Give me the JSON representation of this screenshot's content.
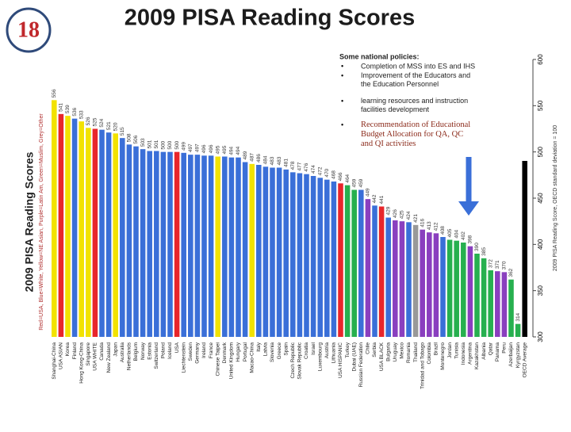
{
  "slide": {
    "number": "18",
    "title": "2009 PISA Reading Scores"
  },
  "chart_data": {
    "type": "bar",
    "y_label": "2009 PISA Reading Scores",
    "color_key": "Red=USA, Blue=White, Yellow=NE Asian, Purple=Latin Am, Green=Muslim, Grey=Other",
    "y2_label": "2009 PISA Reading Score, OECD standard deviation = 100",
    "annotation": {
      "heading": "Some national policies:",
      "bullets": [
        "Completion of MSS into ES and IHS",
        "Improvement of the Educators and the Education Personnel",
        "learning resources and instruction facilities development",
        "Recommendation of Educational Budget Allocation for QA, QC and QI activities"
      ]
    },
    "categories": [
      "Shanghai-China",
      "USA ASIAN",
      "Korea",
      "Finland",
      "Hong Kong-China",
      "Singapore",
      "USA WHITE",
      "Canada",
      "New Zealand",
      "Japan",
      "Australia",
      "Netherlands",
      "Belgium",
      "Norway",
      "Estonia",
      "Switzerland",
      "Poland",
      "Iceland",
      "USA",
      "Liechtenstein",
      "Sweden",
      "Germany",
      "Ireland",
      "France",
      "Chinese Taipei",
      "Denmark",
      "United Kingdom",
      "Hungary",
      "Portugal",
      "Macao-China",
      "Italy",
      "Latvia",
      "Slovenia",
      "Greece",
      "Spain",
      "Czech Republic",
      "Slovak Republic",
      "Croatia",
      "Israel",
      "Luxembourg",
      "Austria",
      "Lithuania",
      "USA HISPANIC",
      "Turkey",
      "Dubai (UAE)",
      "Russian Federation",
      "Chile",
      "Serbia",
      "USA BLACK",
      "Bulgaria",
      "Uruguay",
      "Mexico",
      "Romania",
      "Thailand",
      "Trinidad and Tobago",
      "Colombia",
      "Brazil",
      "Montenegro",
      "Jordan",
      "Tunisia",
      "Indonesia",
      "Argentina",
      "Kazakhstan",
      "Albania",
      "Qatar",
      "Panama",
      "Peru",
      "Azerbaijan",
      "Kyrgyzstan",
      "OECD Average"
    ],
    "values": [
      556,
      541,
      539,
      536,
      533,
      526,
      525,
      524,
      521,
      520,
      515,
      508,
      506,
      503,
      501,
      501,
      500,
      500,
      500,
      499,
      497,
      497,
      496,
      496,
      495,
      495,
      494,
      494,
      489,
      487,
      486,
      484,
      483,
      483,
      481,
      478,
      477,
      476,
      474,
      472,
      470,
      468,
      466,
      464,
      459,
      459,
      449,
      442,
      441,
      429,
      426,
      425,
      424,
      421,
      416,
      413,
      412,
      408,
      405,
      404,
      402,
      398,
      390,
      385,
      372,
      371,
      370,
      362,
      314,
      493
    ],
    "colors": [
      "#f2e200",
      "#e8262b",
      "#f2e200",
      "#3a6fd8",
      "#f2e200",
      "#f2e200",
      "#e8262b",
      "#3a6fd8",
      "#3a6fd8",
      "#f2e200",
      "#3a6fd8",
      "#3a6fd8",
      "#3a6fd8",
      "#3a6fd8",
      "#3a6fd8",
      "#3a6fd8",
      "#3a6fd8",
      "#3a6fd8",
      "#e8262b",
      "#3a6fd8",
      "#3a6fd8",
      "#3a6fd8",
      "#3a6fd8",
      "#3a6fd8",
      "#f2e200",
      "#3a6fd8",
      "#3a6fd8",
      "#3a6fd8",
      "#3a6fd8",
      "#f2e200",
      "#3a6fd8",
      "#3a6fd8",
      "#3a6fd8",
      "#3a6fd8",
      "#3a6fd8",
      "#3a6fd8",
      "#3a6fd8",
      "#3a6fd8",
      "#3a6fd8",
      "#3a6fd8",
      "#3a6fd8",
      "#3a6fd8",
      "#e8262b",
      "#27b04f",
      "#27b04f",
      "#3a6fd8",
      "#8a3fbf",
      "#3a6fd8",
      "#e8262b",
      "#3a6fd8",
      "#8a3fbf",
      "#8a3fbf",
      "#3a6fd8",
      "#999999",
      "#8a3fbf",
      "#8a3fbf",
      "#8a3fbf",
      "#3a6fd8",
      "#27b04f",
      "#27b04f",
      "#27b04f",
      "#8a3fbf",
      "#27b04f",
      "#27b04f",
      "#27b04f",
      "#8a3fbf",
      "#8a3fbf",
      "#27b04f",
      "#27b04f",
      "#000000"
    ],
    "ylim": [
      300,
      600
    ],
    "yticks": [
      300,
      350,
      400,
      450,
      500,
      550,
      600
    ]
  }
}
